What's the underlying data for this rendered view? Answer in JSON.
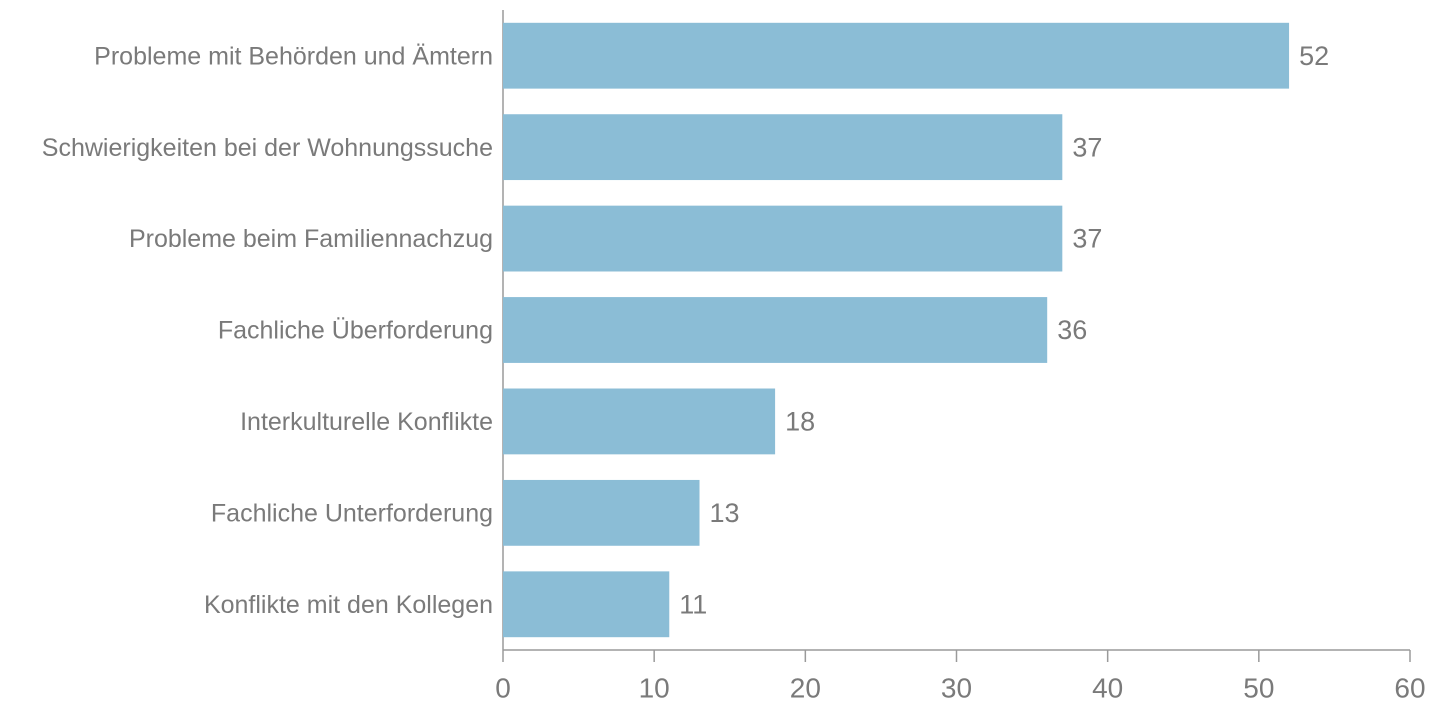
{
  "chart_data": {
    "type": "bar",
    "categories": [
      "Probleme mit Behörden und Ämtern",
      "Schwierigkeiten bei der Wohnungssuche",
      "Probleme beim Familiennachzug",
      "Fachliche Überforderung",
      "Interkulturelle Konflikte",
      "Fachliche Unterforderung",
      "Konflikte mit den Kollegen"
    ],
    "values": [
      52,
      37,
      37,
      36,
      18,
      13,
      11
    ],
    "color": "#8bbdd6",
    "xlim": [
      0,
      60
    ],
    "xticks": [
      0,
      10,
      20,
      30,
      40,
      50,
      60
    ]
  }
}
